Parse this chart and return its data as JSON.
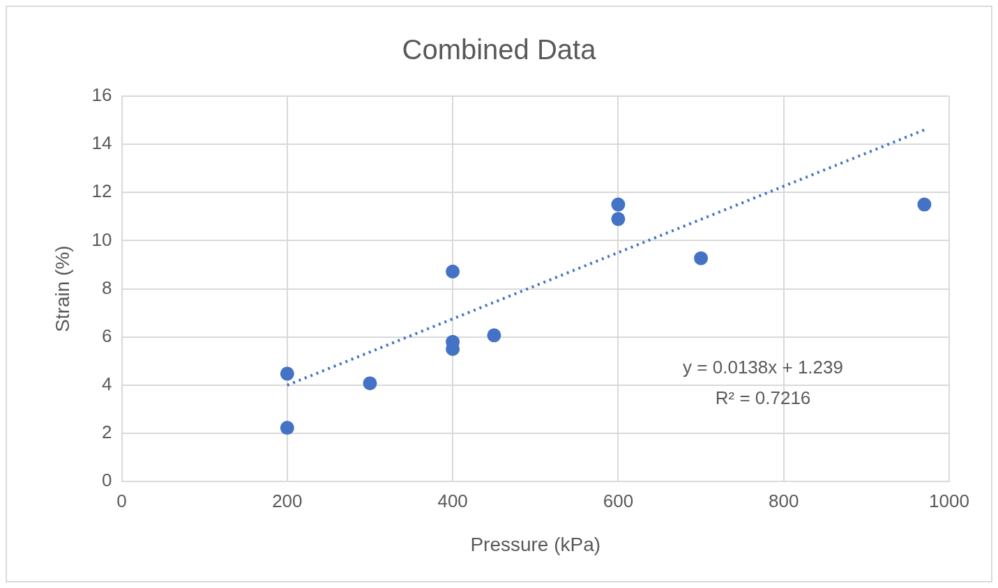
{
  "chart_data": {
    "type": "scatter",
    "title": "Combined Data",
    "xlabel": "Pressure (kPa)",
    "ylabel": "Strain (%)",
    "xlim": [
      0,
      1000
    ],
    "xticks": [
      0,
      200,
      400,
      600,
      800,
      1000
    ],
    "ylim": [
      0,
      16
    ],
    "yticks": [
      0,
      2,
      4,
      6,
      8,
      10,
      12,
      14,
      16
    ],
    "grid": true,
    "legend": false,
    "marker": "circle",
    "series": [
      {
        "color": "#4472c4",
        "x": [
          200,
          200,
          300,
          400,
          400,
          400,
          450,
          600,
          600,
          700,
          970
        ],
        "values": [
          4.48,
          2.23,
          4.08,
          8.72,
          5.8,
          5.5,
          6.07,
          11.5,
          10.9,
          9.27,
          11.5
        ]
      },
      {
        "type": "line",
        "line_style": "dotted",
        "marker": "none",
        "color": "#4472c4",
        "x": [
          200,
          970
        ],
        "values": [
          4.0,
          14.6
        ]
      }
    ],
    "annotations": [
      "y = 0.0138x + 1.239",
      "R² = 0.7216"
    ]
  }
}
